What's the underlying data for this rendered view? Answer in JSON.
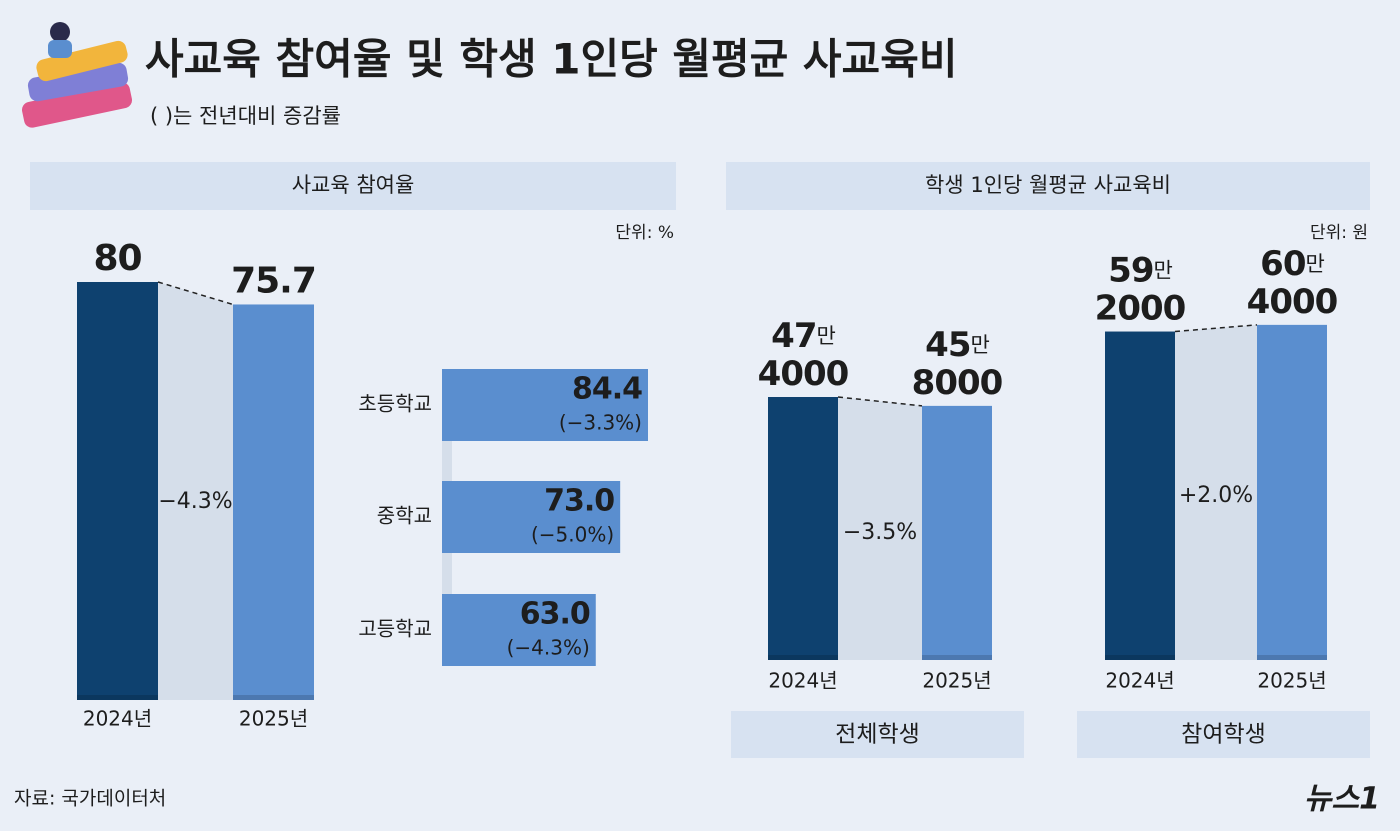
{
  "title": "사교육 참여율 및 학생 1인당 월평균 사교육비",
  "subtitle": "(  )는 전년대비 증감률",
  "source": "자료: 국가데이터처",
  "logo": "뉴스1",
  "chart_data": [
    {
      "type": "bar",
      "title": "사교육 참여율",
      "unit": "단위: %",
      "categories": [
        "2024년",
        "2025년"
      ],
      "values": [
        80,
        75.7
      ],
      "colors": [
        "#0e416f",
        "#5a8ecf"
      ],
      "change": "−4.3%"
    },
    {
      "type": "hbar",
      "categories": [
        "초등학교",
        "중학교",
        "고등학교"
      ],
      "values": [
        84.4,
        73.0,
        63.0
      ],
      "value_labels": [
        "84.4",
        "73.0",
        "63.0"
      ],
      "changes": [
        "(−3.3%)",
        "(−5.0%)",
        "(−4.3%)"
      ],
      "color": "#5a8ecf"
    },
    {
      "type": "bar",
      "title": "학생 1인당 월평균 사교육비",
      "unit": "단위: 원",
      "label": "전체학생",
      "categories": [
        "2024년",
        "2025년"
      ],
      "values": [
        474000,
        458000
      ],
      "value_labels": [
        "47만 4000",
        "45만 8000"
      ],
      "colors": [
        "#0e416f",
        "#5a8ecf"
      ],
      "change": "−3.5%"
    },
    {
      "type": "bar",
      "label": "참여학생",
      "categories": [
        "2024년",
        "2025년"
      ],
      "values": [
        592000,
        604000
      ],
      "value_labels": [
        "59만 2000",
        "60만 4000"
      ],
      "colors": [
        "#0e416f",
        "#5a8ecf"
      ],
      "change": "+2.0%"
    }
  ]
}
